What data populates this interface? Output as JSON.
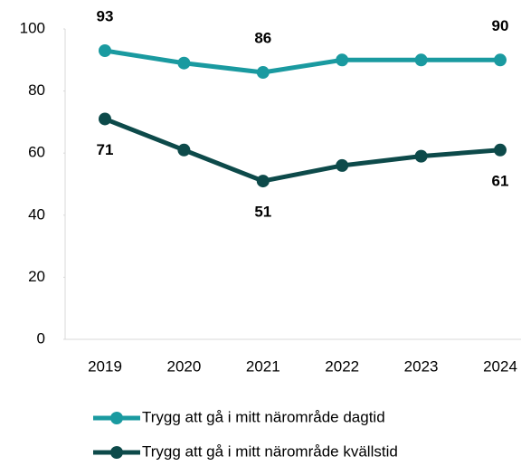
{
  "chart_data": {
    "type": "line",
    "categories": [
      "2019",
      "2020",
      "2021",
      "2022",
      "2023",
      "2024"
    ],
    "series": [
      {
        "name": "Trygg att gå i mitt närområde dagtid",
        "color": "#1a9aa0",
        "values": [
          93,
          89,
          86,
          90,
          90,
          90
        ],
        "value_labels": [
          "93",
          null,
          "86",
          null,
          null,
          "90"
        ]
      },
      {
        "name": "Trygg att gå i mitt närområde kvällstid",
        "color": "#0d4a4a",
        "values": [
          71,
          61,
          51,
          56,
          59,
          61
        ],
        "value_labels": [
          "71",
          null,
          "51",
          null,
          null,
          "61"
        ]
      }
    ],
    "ylim": [
      0,
      100
    ],
    "yticks": [
      0,
      20,
      40,
      60,
      80,
      100
    ],
    "grid": false
  }
}
